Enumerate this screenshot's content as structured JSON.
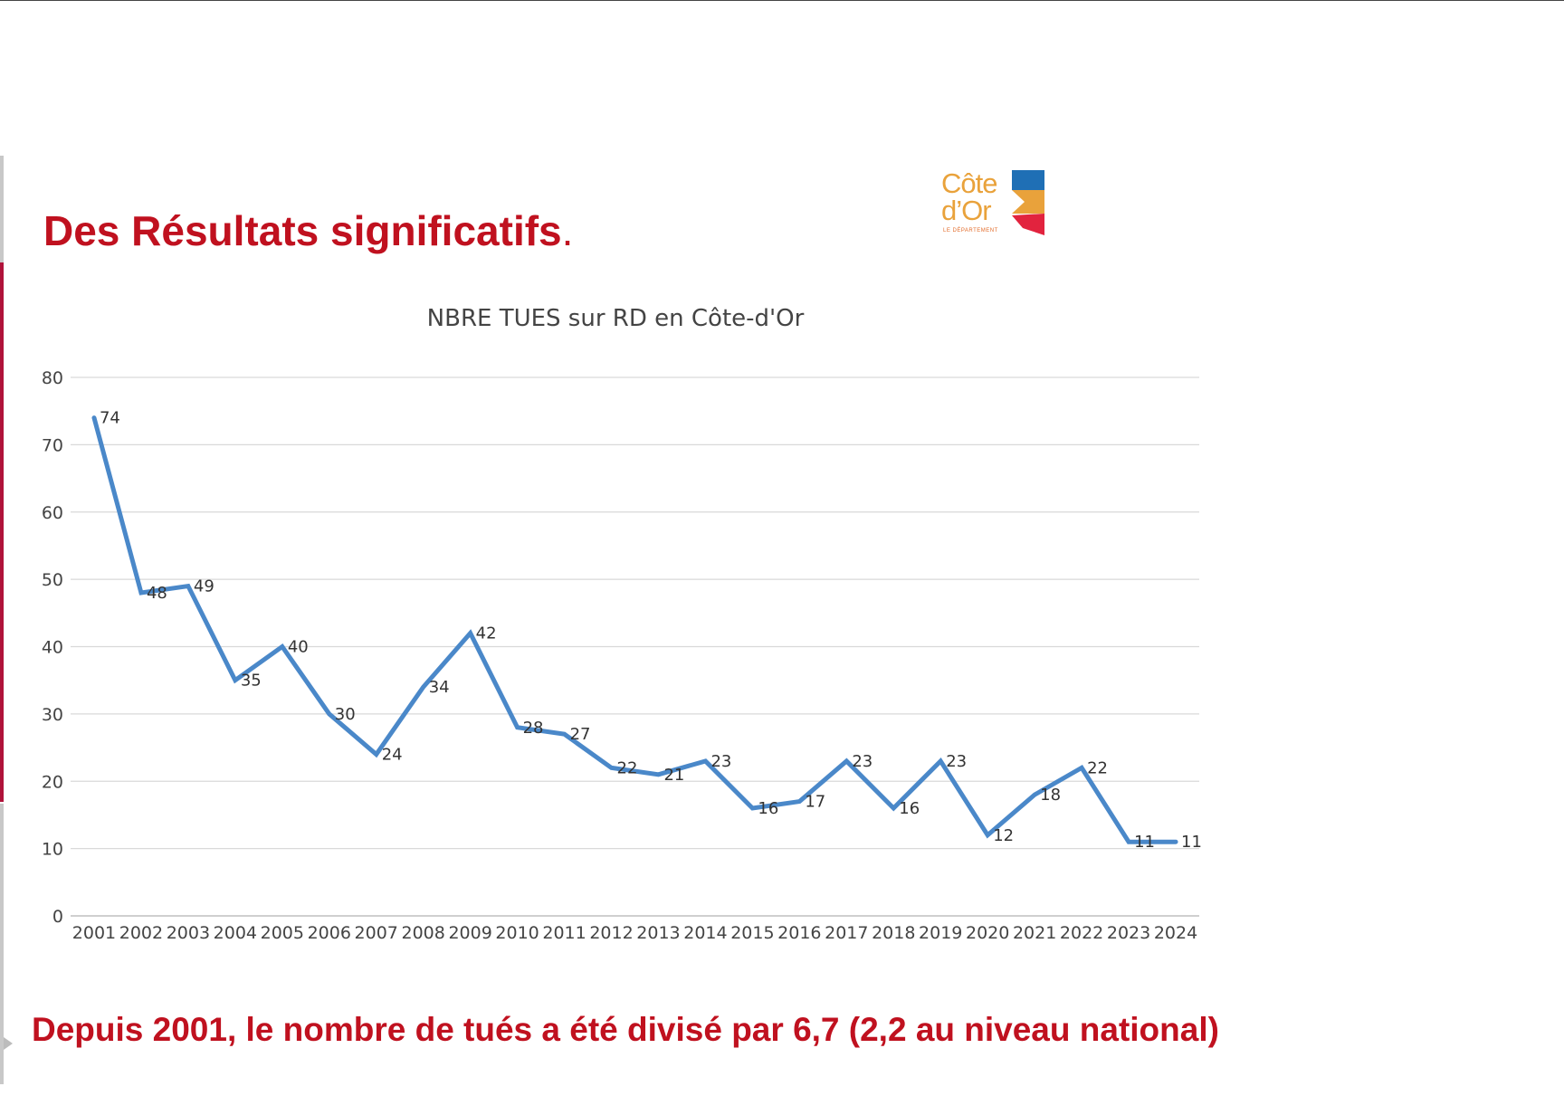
{
  "slide": {
    "headline": "Des Résultats significatifs",
    "headline_dot": ".",
    "footer": "Depuis 2001, le nombre de tués a été divisé par 6,7 (2,2 au niveau national)"
  },
  "logo": {
    "line1": "Côte",
    "line2": "d’Or",
    "subtitle": "LE DÉPARTEMENT",
    "colors": [
      "#1f6fb5",
      "#e9a23b",
      "#e2233e"
    ]
  },
  "chart_data": {
    "type": "line",
    "title": "NBRE TUES sur RD en Côte-d'Or",
    "xlabel": "",
    "ylabel": "",
    "ylim": [
      0,
      80
    ],
    "yticks": [
      0,
      10,
      20,
      30,
      40,
      50,
      60,
      70,
      80
    ],
    "grid": true,
    "line_color": "#4a88c9",
    "categories": [
      "2001",
      "2002",
      "2003",
      "2004",
      "2005",
      "2006",
      "2007",
      "2008",
      "2009",
      "2010",
      "2011",
      "2012",
      "2013",
      "2014",
      "2015",
      "2016",
      "2017",
      "2018",
      "2019",
      "2020",
      "2021",
      "2022",
      "2023",
      "2024"
    ],
    "series": [
      {
        "values": [
          74,
          48,
          49,
          35,
          40,
          30,
          24,
          34,
          42,
          28,
          27,
          22,
          21,
          23,
          16,
          17,
          23,
          16,
          23,
          12,
          18,
          22,
          11,
          11
        ]
      }
    ]
  }
}
